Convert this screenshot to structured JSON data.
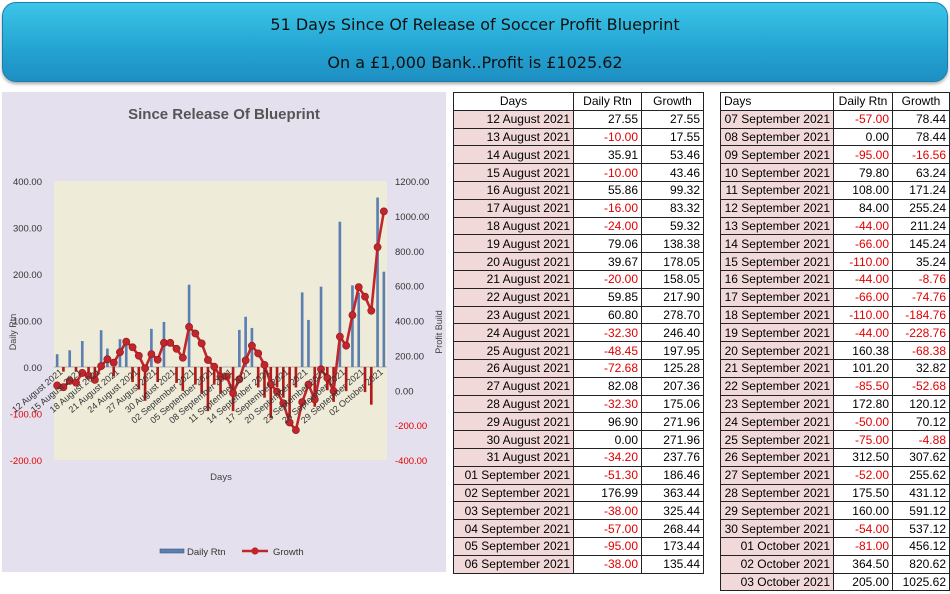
{
  "banner": {
    "line1": "51 Days Since Of Release of Soccer Profit Blueprint",
    "line2": "On a £1,000 Bank..Profit is £1025.62"
  },
  "colors": {
    "bar": "#5b7fb0",
    "line": "#c0262b",
    "negative_text": "#e00000",
    "date_cell": "#f2d9d9"
  },
  "chart_data": {
    "type": "bar+line",
    "title": "Since Release Of Blueprint",
    "xlabel": "Days",
    "ylabel_left": "Daily Rtn",
    "ylabel_right": "Profit Build",
    "ylim_left": [
      -200,
      400
    ],
    "ylim_right": [
      -400,
      1200
    ],
    "yticks_left": [
      "400.00",
      "300.00",
      "200.00",
      "100.00",
      "0.00",
      "-100.00",
      "-200.00"
    ],
    "yticks_right": [
      "1200.00",
      "1000.00",
      "800.00",
      "600.00",
      "400.00",
      "200.00",
      "0.00",
      "-200.00",
      "-400.00"
    ],
    "xtick_labels": [
      "12 August 2021",
      "15 August 2021",
      "18 August 2021",
      "21 August 2021",
      "24 August 2021",
      "27 August 2021",
      "30 August 2021",
      "02 September 2021",
      "05 September 2021",
      "08 September 2021",
      "11 September 2021",
      "14 September 2021",
      "17 September 2021",
      "20 September 2021",
      "23 September 2021",
      "26 September 2021",
      "29 September 2021",
      "02 October 2021"
    ],
    "legend": [
      "Daily Rtn",
      "Growth"
    ],
    "legend_position": "bottom",
    "series": [
      {
        "name": "Daily Rtn",
        "type": "bar",
        "axis": "left",
        "values": [
          27.55,
          -10.0,
          35.91,
          -10.0,
          55.86,
          -16.0,
          -24.0,
          79.06,
          39.67,
          -20.0,
          59.85,
          60.8,
          -32.3,
          -48.45,
          -72.68,
          82.08,
          -32.3,
          96.9,
          0.0,
          -34.2,
          -51.3,
          176.99,
          -38.0,
          -57.0,
          -95.0,
          -38.0,
          -57.0,
          0.0,
          -95.0,
          79.8,
          108.0,
          84.0,
          -44.0,
          -66.0,
          -110.0,
          -44.0,
          -66.0,
          -110.0,
          -44.0,
          160.38,
          101.2,
          -85.5,
          172.8,
          -50.0,
          -75.0,
          312.5,
          -52.0,
          175.5,
          160.0,
          -54.0,
          -81.0,
          364.5,
          205.0
        ]
      },
      {
        "name": "Growth",
        "type": "line",
        "axis": "right",
        "values": [
          27.55,
          17.55,
          53.46,
          43.46,
          99.32,
          83.32,
          59.32,
          138.38,
          178.05,
          158.05,
          217.9,
          278.7,
          246.4,
          197.95,
          125.28,
          207.36,
          175.06,
          271.96,
          271.96,
          237.76,
          186.46,
          363.44,
          325.44,
          268.44,
          173.44,
          135.44,
          78.44,
          78.44,
          -16.56,
          63.24,
          171.24,
          255.24,
          211.24,
          145.24,
          35.24,
          -8.76,
          -74.76,
          -184.76,
          -228.76,
          -68.38,
          32.82,
          -52.68,
          120.12,
          70.12,
          -4.88,
          307.62,
          255.62,
          431.12,
          591.12,
          537.12,
          456.12,
          820.62,
          1025.62
        ]
      }
    ]
  },
  "table1": {
    "headers": [
      "Days",
      "Daily Rtn",
      "Growth"
    ],
    "rows": [
      [
        "12 August 2021",
        "27.55",
        "27.55"
      ],
      [
        "13 August 2021",
        "-10.00",
        "17.55"
      ],
      [
        "14 August 2021",
        "35.91",
        "53.46"
      ],
      [
        "15 August 2021",
        "-10.00",
        "43.46"
      ],
      [
        "16 August 2021",
        "55.86",
        "99.32"
      ],
      [
        "17 August 2021",
        "-16.00",
        "83.32"
      ],
      [
        "18 August 2021",
        "-24.00",
        "59.32"
      ],
      [
        "19 August 2021",
        "79.06",
        "138.38"
      ],
      [
        "20 August 2021",
        "39.67",
        "178.05"
      ],
      [
        "21 August 2021",
        "-20.00",
        "158.05"
      ],
      [
        "22 August 2021",
        "59.85",
        "217.90"
      ],
      [
        "23 August 2021",
        "60.80",
        "278.70"
      ],
      [
        "24 August 2021",
        "-32.30",
        "246.40"
      ],
      [
        "25 August 2021",
        "-48.45",
        "197.95"
      ],
      [
        "26 August 2021",
        "-72.68",
        "125.28"
      ],
      [
        "27 August 2021",
        "82.08",
        "207.36"
      ],
      [
        "28 August 2021",
        "-32.30",
        "175.06"
      ],
      [
        "29 August 2021",
        "96.90",
        "271.96"
      ],
      [
        "30 August 2021",
        "0.00",
        "271.96"
      ],
      [
        "31 August 2021",
        "-34.20",
        "237.76"
      ],
      [
        "01 September 2021",
        "-51.30",
        "186.46"
      ],
      [
        "02 September 2021",
        "176.99",
        "363.44"
      ],
      [
        "03 September 2021",
        "-38.00",
        "325.44"
      ],
      [
        "04 September 2021",
        "-57.00",
        "268.44"
      ],
      [
        "05 September 2021",
        "-95.00",
        "173.44"
      ],
      [
        "06 September 2021",
        "-38.00",
        "135.44"
      ]
    ]
  },
  "table2": {
    "headers": [
      "Days",
      "Daily Rtn",
      "Growth"
    ],
    "rows": [
      [
        "07 September 2021",
        "-57.00",
        "78.44"
      ],
      [
        "08 September 2021",
        "0.00",
        "78.44"
      ],
      [
        "09 September 2021",
        "-95.00",
        "-16.56"
      ],
      [
        "10 September 2021",
        "79.80",
        "63.24"
      ],
      [
        "11 September 2021",
        "108.00",
        "171.24"
      ],
      [
        "12 September 2021",
        "84.00",
        "255.24"
      ],
      [
        "13 September 2021",
        "-44.00",
        "211.24"
      ],
      [
        "14 September 2021",
        "-66.00",
        "145.24"
      ],
      [
        "15 September 2021",
        "-110.00",
        "35.24"
      ],
      [
        "16 September 2021",
        "-44.00",
        "-8.76"
      ],
      [
        "17 September 2021",
        "-66.00",
        "-74.76"
      ],
      [
        "18 September 2021",
        "-110.00",
        "-184.76"
      ],
      [
        "19 September 2021",
        "-44.00",
        "-228.76"
      ],
      [
        "20 September 2021",
        "160.38",
        "-68.38"
      ],
      [
        "21 September 2021",
        "101.20",
        "32.82"
      ],
      [
        "22 September 2021",
        "-85.50",
        "-52.68"
      ],
      [
        "23 September 2021",
        "172.80",
        "120.12"
      ],
      [
        "24 September 2021",
        "-50.00",
        "70.12"
      ],
      [
        "25 September 2021",
        "-75.00",
        "-4.88"
      ],
      [
        "26 September 2021",
        "312.50",
        "307.62"
      ],
      [
        "27 September 2021",
        "-52.00",
        "255.62"
      ],
      [
        "28 September 2021",
        "175.50",
        "431.12"
      ],
      [
        "29 September 2021",
        "160.00",
        "591.12"
      ],
      [
        "30 September 2021",
        "-54.00",
        "537.12"
      ],
      [
        "01 October 2021",
        "-81.00",
        "456.12"
      ],
      [
        "02 October 2021",
        "364.50",
        "820.62"
      ],
      [
        "03 October 2021",
        "205.00",
        "1025.62"
      ]
    ]
  }
}
